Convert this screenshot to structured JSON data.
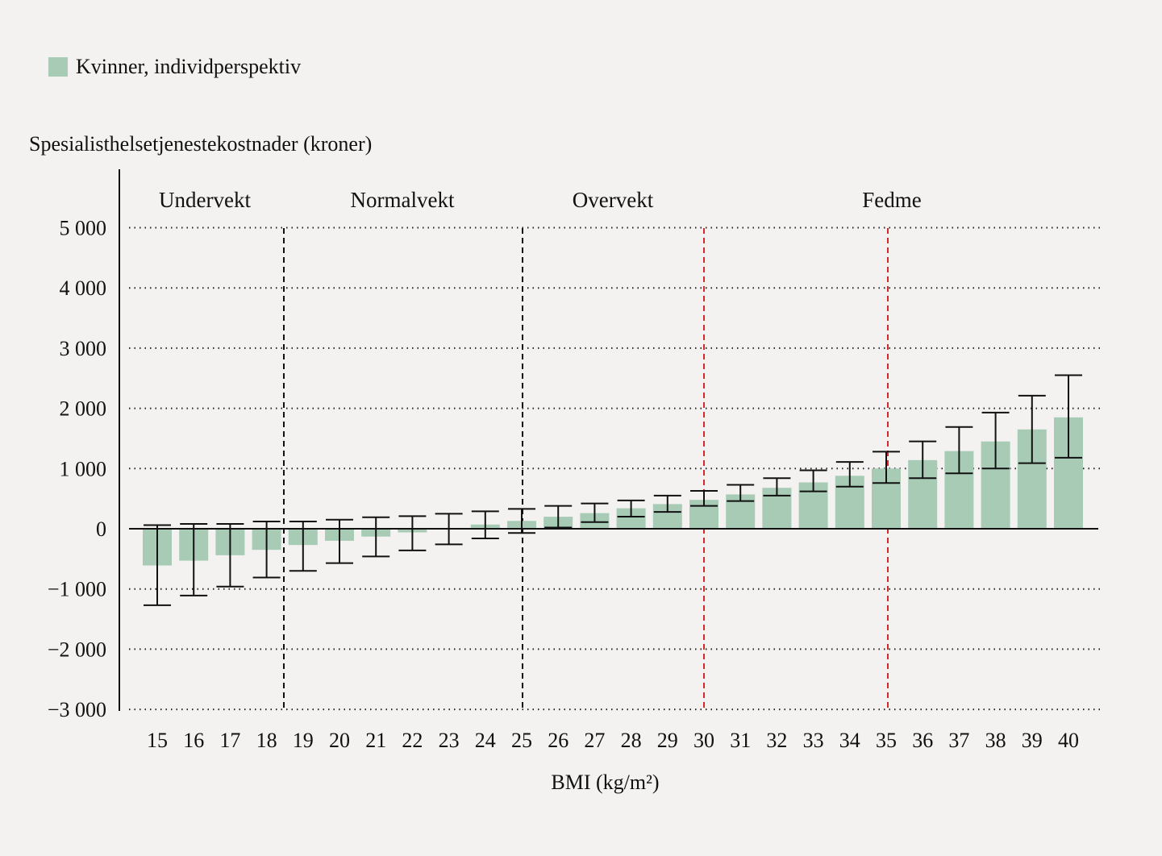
{
  "legend": {
    "label": "Kvinner, individperspektiv",
    "color": "#a8cbb6"
  },
  "chart_data": {
    "type": "bar",
    "title": "",
    "xlabel": "BMI (kg/m²)",
    "ylabel": "Spesialisthelsetjenestekostnader (kroner)",
    "ylim": [
      -3000,
      5000
    ],
    "yticks": [
      5000,
      4000,
      3000,
      2000,
      1000,
      0,
      -1000,
      -2000,
      -3000
    ],
    "ytick_labels": [
      "5 000",
      "4 000",
      "3 000",
      "2 000",
      "1 000",
      "0",
      "−1 000",
      "−2 000",
      "−3 000"
    ],
    "grid": "horizontal dotted",
    "legend_position": "top-left",
    "categories": [
      "15",
      "16",
      "17",
      "18",
      "19",
      "20",
      "21",
      "22",
      "23",
      "24",
      "25",
      "26",
      "27",
      "28",
      "29",
      "30",
      "31",
      "32",
      "33",
      "34",
      "35",
      "36",
      "37",
      "38",
      "39",
      "40"
    ],
    "series": [
      {
        "name": "Kvinner, individperspektiv",
        "values": [
          -610,
          -530,
          -440,
          -350,
          -270,
          -200,
          -130,
          -60,
          0,
          70,
          130,
          200,
          260,
          340,
          410,
          480,
          570,
          680,
          770,
          880,
          1000,
          1140,
          1290,
          1450,
          1650,
          1850
        ],
        "ci_low": [
          -1270,
          -1110,
          -960,
          -810,
          -700,
          -570,
          -460,
          -360,
          -260,
          -160,
          -70,
          20,
          110,
          200,
          280,
          380,
          460,
          550,
          620,
          700,
          760,
          840,
          920,
          1000,
          1090,
          1180
        ],
        "ci_high": [
          60,
          80,
          80,
          120,
          120,
          150,
          190,
          210,
          250,
          290,
          330,
          380,
          420,
          470,
          550,
          630,
          730,
          840,
          970,
          1110,
          1280,
          1450,
          1690,
          1930,
          2210,
          2550
        ]
      }
    ],
    "categories_bands": [
      {
        "label": "Undervekt",
        "from": 15,
        "to": 18.5
      },
      {
        "label": "Normalvekt",
        "from": 18.5,
        "to": 25
      },
      {
        "label": "Overvekt",
        "from": 25,
        "to": 30
      },
      {
        "label": "Fedme",
        "from": 30,
        "to": 40
      }
    ],
    "vlines": [
      {
        "at": 18.5,
        "style": "dashed",
        "color": "#111111"
      },
      {
        "at": 25,
        "style": "dashed",
        "color": "#111111"
      },
      {
        "at": 30,
        "style": "dashed",
        "color": "#d42a2a"
      },
      {
        "at": 35,
        "style": "dashed",
        "color": "#d42a2a"
      }
    ]
  }
}
